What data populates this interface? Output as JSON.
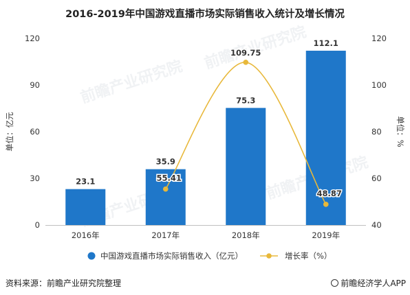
{
  "title": "2016-2019年中国游戏直播市场实际销售收入统计及增长情况",
  "source": "资料来源：前瞻产业研究院整理",
  "brand": "前瞻经济学人APP",
  "watermark": "前瞻产业研究院",
  "chart_data": {
    "type": "bar",
    "categories": [
      "2016年",
      "2017年",
      "2018年",
      "2019年"
    ],
    "series": [
      {
        "name": "中国游戏直播市场实际销售收入（亿元）",
        "type": "bar",
        "axis": "left",
        "color": "#1f77c9",
        "values": [
          23.1,
          35.9,
          75.3,
          112.1
        ],
        "labels": [
          "23.1",
          "35.9",
          "75.3",
          "112.1"
        ]
      },
      {
        "name": "增长率（%）",
        "type": "line",
        "axis": "right",
        "color": "#e8b83a",
        "values": [
          null,
          55.41,
          109.75,
          48.87
        ],
        "labels": [
          "",
          "55.41",
          "109.75",
          "48.87"
        ]
      }
    ],
    "ylabel": "单位：亿元",
    "y2label": "单位：%",
    "ylim": [
      0,
      120
    ],
    "yticks": [
      "0",
      "30",
      "60",
      "90",
      "120"
    ],
    "y2lim": [
      40,
      120
    ],
    "y2ticks": [
      "40",
      "60",
      "80",
      "100",
      "120"
    ],
    "legend_position": "bottom",
    "grid": false
  }
}
